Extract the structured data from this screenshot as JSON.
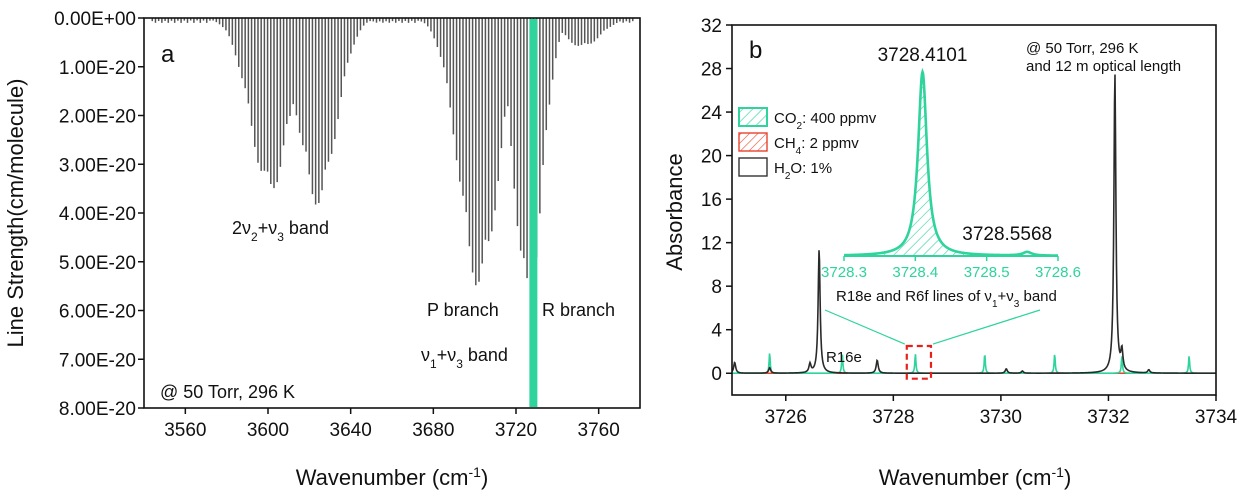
{
  "chart_data": [
    {
      "type": "bar",
      "panel_label": "a",
      "xlabel": "Wavenumber (cm",
      "xlabel_sup": "-1",
      "xlabel_close": ")",
      "ylabel": "Line Strength(cm/molecule)",
      "xlim": [
        3540,
        3780
      ],
      "ylim": [
        0,
        8e-20
      ],
      "y_inverted": true,
      "x_ticks": [
        3560,
        3600,
        3640,
        3680,
        3720,
        3760
      ],
      "y_tick_labels": [
        "0.00E+00",
        "1.00E-20",
        "2.00E-20",
        "3.00E-20",
        "4.00E-20",
        "5.00E-20",
        "6.00E-20",
        "7.00E-20",
        "8.00E-20"
      ],
      "bands": [
        {
          "center": 3601,
          "peak": 3.6e-20,
          "width": 17
        },
        {
          "center": 3624,
          "peak": 3.85e-20,
          "width": 16
        },
        {
          "center": 3702,
          "peak": 5.55e-20,
          "width": 17
        },
        {
          "center": 3726,
          "peak": 5.9e-20,
          "width": 12
        },
        {
          "center": 3752,
          "peak": 6e-21,
          "width": 16
        }
      ],
      "highlight_line": {
        "x": 3728.41,
        "color": "#2fd39c"
      },
      "annotations": {
        "band1_prefix": "2ν",
        "band1_sub1": "2",
        "band1_mid": "+ν",
        "band1_sub2": "3",
        "band1_suffix": " band",
        "p_branch": "P branch",
        "r_branch": "R branch",
        "band2_prefix": "ν",
        "band2_sub1": "1",
        "band2_mid": "+ν",
        "band2_sub2": "3",
        "band2_suffix": " band",
        "conditions": "@ 50 Torr, 296 K"
      }
    },
    {
      "type": "line",
      "panel_label": "b",
      "xlabel": "Wavenumber (cm",
      "xlabel_sup": "-1",
      "xlabel_close": ")",
      "ylabel": "Absorbance",
      "xlim": [
        3725,
        3734
      ],
      "ylim": [
        -2,
        32
      ],
      "x_ticks": [
        3726,
        3728,
        3730,
        3732,
        3734
      ],
      "y_ticks": [
        0,
        4,
        8,
        12,
        16,
        20,
        24,
        28,
        32
      ],
      "series": [
        {
          "name": "CO2: 400 ppmv",
          "color": "#2fd39c",
          "width": 0.012,
          "peaks": [
            [
              3725.7,
              1.9
            ],
            [
              3727.05,
              1.9
            ],
            [
              3728.41,
              1.8
            ],
            [
              3729.7,
              1.8
            ],
            [
              3731.0,
              1.8
            ],
            [
              3732.25,
              1.6
            ],
            [
              3733.5,
              1.6
            ]
          ]
        },
        {
          "name": "CH4: 2 ppmv",
          "color": "#e8432d",
          "peaks": []
        },
        {
          "name": "H2O: 1%",
          "color": "#2a2a2a",
          "width": 0.022,
          "peaks": [
            [
              3725.05,
              1.0
            ],
            [
              3725.7,
              0.5
            ],
            [
              3726.45,
              0.8
            ],
            [
              3726.62,
              11.4
            ],
            [
              3727.7,
              1.2
            ],
            [
              3730.1,
              0.4
            ],
            [
              3730.4,
              0.2
            ],
            [
              3732.12,
              27.6
            ],
            [
              3732.25,
              1.8
            ],
            [
              3732.75,
              0.3
            ]
          ]
        }
      ],
      "legend": [
        {
          "pre": "CO",
          "sub": "2",
          "post": ": 400 ppmv"
        },
        {
          "pre": "CH",
          "sub": "4",
          "post": ": 2 ppmv"
        },
        {
          "pre": "H",
          "sub": "2",
          "post": "O: 1%"
        }
      ],
      "annotations": {
        "r16e": "R16e",
        "conditions_line1": "@ 50 Torr, 296 K",
        "conditions_line2": "and 12 m optical  length",
        "lines_caption_prefix": "R18e and R6f lines of ν",
        "lines_caption_sub1": "1",
        "lines_caption_mid": "+ν",
        "lines_caption_sub2": "3",
        "lines_caption_suffix": " band"
      },
      "zoom_box": {
        "x0": 3728.25,
        "x1": 3728.7,
        "y0": -0.5,
        "y1": 2.5,
        "color": "#e8201b"
      },
      "inset": {
        "xlim": [
          3728.3,
          3728.6
        ],
        "x_tick_labels": [
          "3728.3",
          "3728.4",
          "3728.5",
          "3728.6"
        ],
        "peak1_label": "3728.4101",
        "peak2_label": "3728.5568",
        "peaks": [
          [
            3728.4101,
            1.0
          ],
          [
            3728.5568,
            0.02
          ]
        ],
        "hwhm": 0.0075,
        "color": "#2fd39c"
      }
    }
  ]
}
